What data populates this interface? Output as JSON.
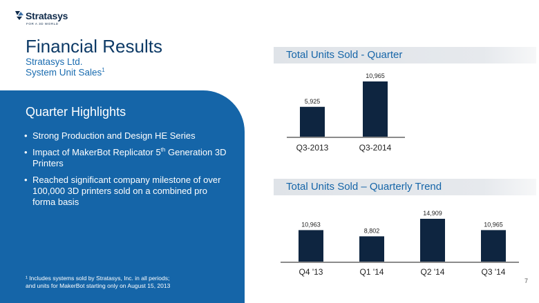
{
  "brand": {
    "name": "Stratasys",
    "tagline": "FOR A 3D WORLD",
    "accent": "#1565a8",
    "bar_color": "#0e2540"
  },
  "header": {
    "title": "Financial Results",
    "subtitle_company": "Stratasys Ltd.",
    "subtitle_metric": "System Unit Sales",
    "subtitle_footnote_mark": "1"
  },
  "highlights": {
    "title": "Quarter Highlights",
    "bullets": {
      "b1": "Strong Production and Design HE Series",
      "b2_pre": "Impact of MakerBot Replicator 5",
      "b2_sup": "th",
      "b2_post": " Generation 3D Printers",
      "b3": "Reached significant company milestone of over 100,000 3D printers sold on a combined pro forma basis"
    }
  },
  "footnote": {
    "line1": "¹ Includes systems sold by Stratasys, Inc. in all periods;",
    "line2": "and units for MakerBot starting only on August 15, 2013"
  },
  "page_number": "7",
  "chart_data": [
    {
      "type": "bar",
      "title": "Total Units Sold - Quarter",
      "categories": [
        "Q3-2013",
        "Q3-2014"
      ],
      "values": [
        5925,
        10965
      ],
      "value_labels": [
        "5,925",
        "10,965"
      ],
      "ylim": [
        0,
        10965
      ],
      "grid": false,
      "legend": "none"
    },
    {
      "type": "bar",
      "title": "Total Units Sold – Quarterly Trend",
      "categories": [
        "Q4 '13",
        "Q1 '14",
        "Q2 '14",
        "Q3 '14"
      ],
      "values": [
        10963,
        8802,
        14909,
        10965
      ],
      "value_labels": [
        "10,963",
        "8,802",
        "14,909",
        "10,965"
      ],
      "ylim": [
        0,
        14909
      ],
      "grid": false,
      "legend": "none"
    }
  ]
}
